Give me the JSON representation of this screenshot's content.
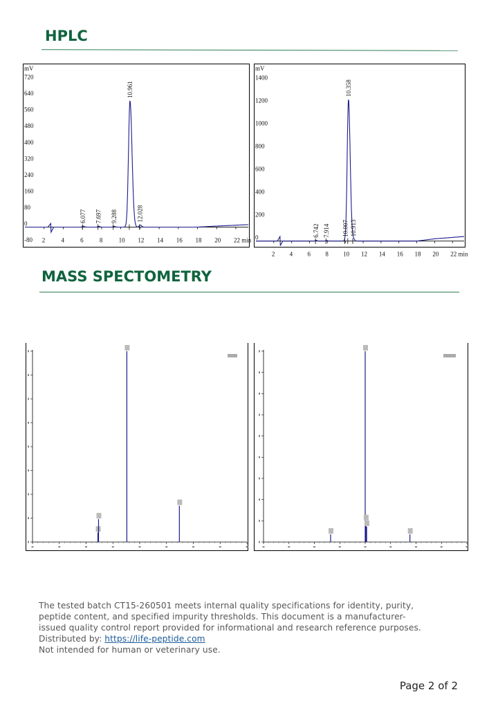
{
  "sections": {
    "hplc_title": "HPLC",
    "ms_title": "MASS SPECTOMETRY"
  },
  "colors": {
    "title": "#10643e",
    "rule": "#2e7d52",
    "trace": "#1a1a8c"
  },
  "footer": {
    "line1": "The tested batch CT15-260501 meets internal quality specifications for identity, purity,",
    "line2": "peptide content, and specified impurity thresholds. This document is a manufacturer-",
    "line3": "issued quality control report provided for informational and research reference purposes.",
    "distributed_label": "Distributed by: ",
    "distributed_link": "https://life-peptide.com",
    "line5": "Not intended for human or veterinary use."
  },
  "page": {
    "label": "Page 2 of 2"
  },
  "chart_data": [
    {
      "type": "line",
      "ylabel": "mV",
      "xunit": "min",
      "xlim": [
        0,
        23.3
      ],
      "ylim": [
        -80,
        790
      ],
      "yticks": [
        -80,
        0,
        80,
        160,
        240,
        320,
        400,
        480,
        560,
        640,
        720
      ],
      "ytick_labels": [
        "-80",
        "0",
        "80",
        "160",
        "240",
        "320",
        "400",
        "480",
        "560",
        "640",
        "720"
      ],
      "xticks": [
        2,
        4,
        6,
        8,
        10,
        12,
        14,
        16,
        18,
        20,
        22
      ],
      "xtick_labels": [
        "2",
        "4",
        "6",
        "8",
        "10",
        "12",
        "14",
        "16",
        "18",
        "20",
        "22 min"
      ],
      "baseline": [
        [
          0,
          0
        ],
        [
          18,
          0
        ],
        [
          20,
          5
        ],
        [
          23.3,
          12
        ]
      ],
      "disturbance": {
        "x": 2.7,
        "up": 18,
        "down": -28
      },
      "peaks": [
        {
          "rt": 6.077,
          "label": "6.077",
          "height": 5,
          "width": 0.12
        },
        {
          "rt": 7.697,
          "label": "7.697",
          "height": 4,
          "width": 0.12
        },
        {
          "rt": 9.288,
          "label": "9.288",
          "height": 4,
          "width": 0.12
        },
        {
          "rt": 10.961,
          "label": "10.961",
          "height": 620,
          "width": 0.22
        },
        {
          "rt": 12.028,
          "label": "12.028",
          "height": 10,
          "width": 0.14
        }
      ]
    },
    {
      "type": "line",
      "ylabel": "mV",
      "xunit": "min",
      "xlim": [
        0,
        23.3
      ],
      "ylim": [
        -20,
        1530
      ],
      "yticks": [
        0,
        200,
        400,
        600,
        800,
        1000,
        1200,
        1400
      ],
      "ytick_labels": [
        "0",
        "200",
        "400",
        "600",
        "800",
        "1000",
        "1200",
        "1400"
      ],
      "xticks": [
        2,
        4,
        6,
        8,
        10,
        12,
        14,
        16,
        18,
        20,
        22
      ],
      "xtick_labels": [
        "2",
        "4",
        "6",
        "8",
        "10",
        "12",
        "14",
        "16",
        "18",
        "20",
        "22 min"
      ],
      "baseline": [
        [
          0,
          0
        ],
        [
          18,
          0
        ],
        [
          20,
          20
        ],
        [
          23.3,
          40
        ]
      ],
      "disturbance": {
        "x": 2.7,
        "up": 40,
        "down": -45
      },
      "peaks": [
        {
          "rt": 6.742,
          "label": "6.742",
          "height": 6,
          "width": 0.12
        },
        {
          "rt": 7.914,
          "label": "7.914",
          "height": 5,
          "width": 0.12
        },
        {
          "rt": 10.007,
          "label": "10.007",
          "height": 12,
          "width": 0.12
        },
        {
          "rt": 10.358,
          "label": "10.358",
          "height": 1240,
          "width": 0.2
        },
        {
          "rt": 10.913,
          "label": "10.913",
          "height": 15,
          "width": 0.14
        }
      ]
    },
    {
      "type": "bar",
      "ylim": [
        0,
        100
      ],
      "xlim": [
        0,
        1
      ],
      "peaks": [
        {
          "x": 0.305,
          "y": 5,
          "label": ""
        },
        {
          "x": 0.308,
          "y": 12,
          "label": ""
        },
        {
          "x": 0.44,
          "y": 100,
          "label": ""
        },
        {
          "x": 0.685,
          "y": 19,
          "label": ""
        }
      ]
    },
    {
      "type": "bar",
      "ylim": [
        0,
        100
      ],
      "xlim": [
        0,
        1
      ],
      "peaks": [
        {
          "x": 0.33,
          "y": 4,
          "label": ""
        },
        {
          "x": 0.5,
          "y": 100,
          "label": ""
        },
        {
          "x": 0.503,
          "y": 11,
          "label": ""
        },
        {
          "x": 0.507,
          "y": 8,
          "label": ""
        },
        {
          "x": 0.72,
          "y": 4,
          "label": ""
        }
      ]
    }
  ]
}
